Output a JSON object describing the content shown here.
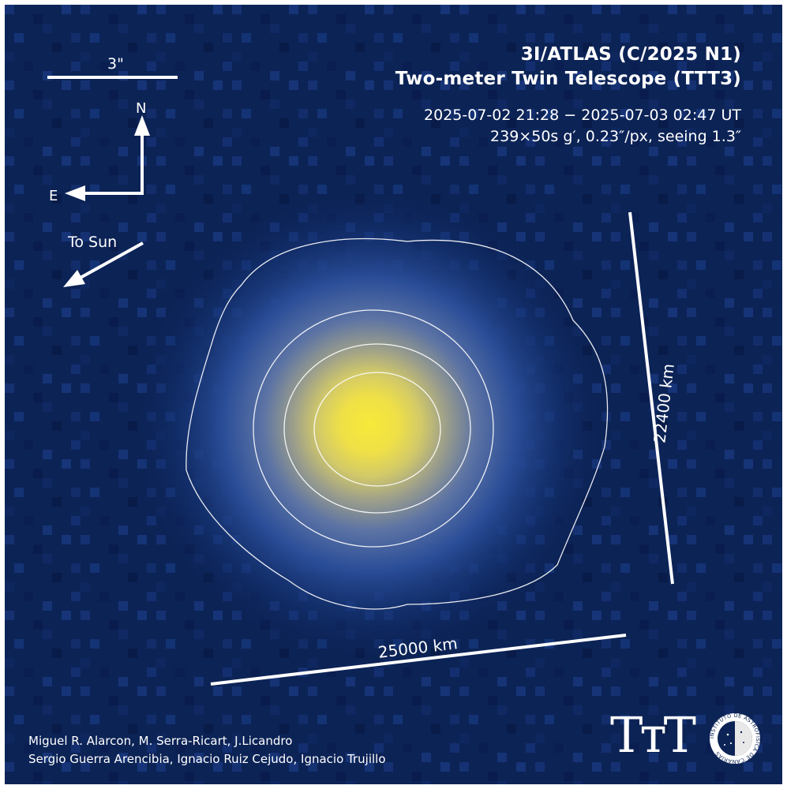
{
  "title": {
    "object": "3I/ATLAS (C/2025 N1)",
    "telescope": "Two-meter Twin Telescope (TTT3)"
  },
  "observation": {
    "dates": "2025-07-02 21:28 − 2025-07-03 02:47 UT",
    "details": "239×50s g′, 0.23″/px, seeing 1.3″"
  },
  "scale_bar_label": "3\"",
  "compass": {
    "north": "N",
    "east": "E"
  },
  "sun_direction_label": "To Sun",
  "scale_horizontal_label": "25000 km",
  "scale_vertical_label": "22400 km",
  "credits": [
    "Miguel R. Alarcon, M. Serra-Ricart, J.Licandro",
    "Sergio Guerra Arencibia, Ignacio Ruiz Cejudo, Ignacio Trujillo"
  ],
  "logo": {
    "text": "TтT",
    "seal_text": "INSTITUTO DE ASTROFISICA DE CANARIAS"
  },
  "colors": {
    "background": "#0c2356",
    "nucleus": "#f4e43c",
    "contours": "#ffffff"
  }
}
